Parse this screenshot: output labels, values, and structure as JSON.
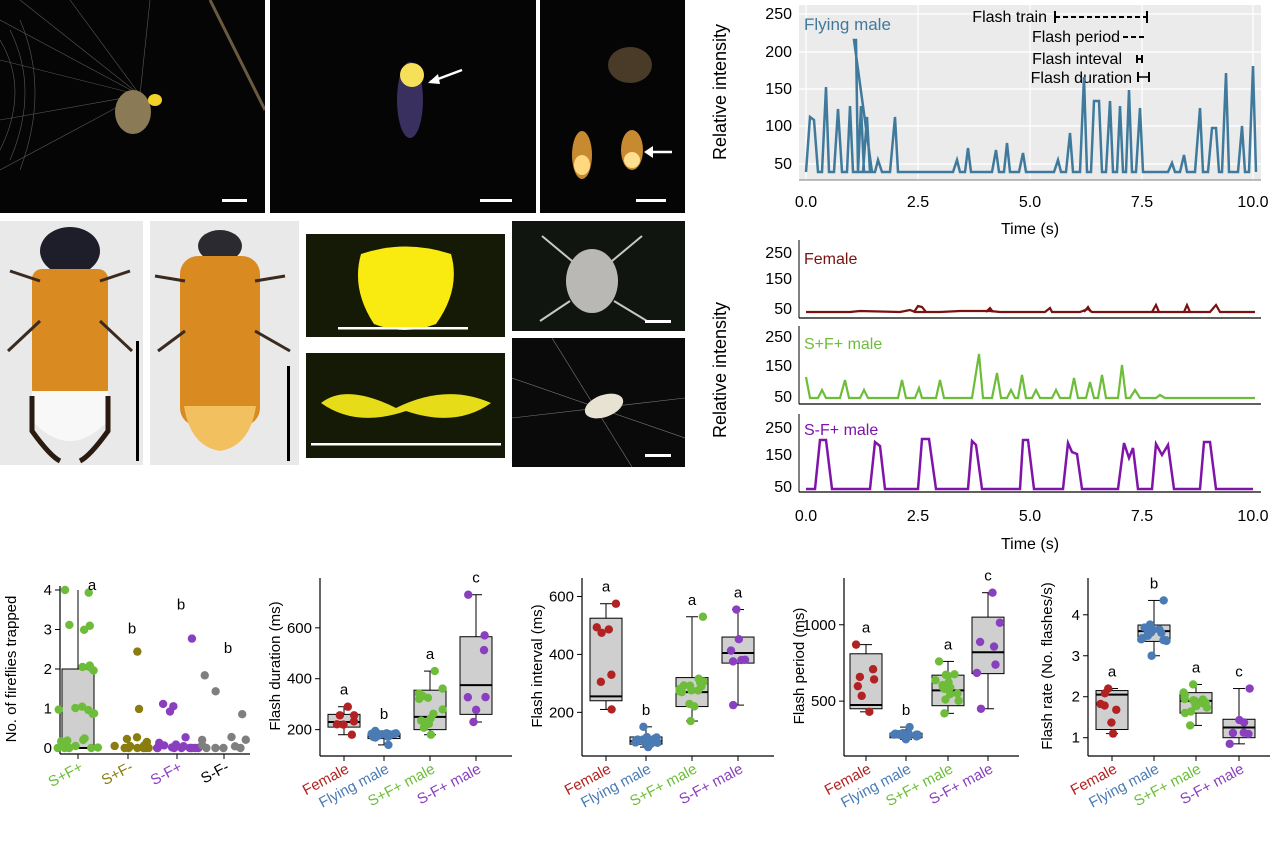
{
  "colors": {
    "female": "#b22222",
    "flying": "#4a7bb4",
    "sfmale": "#6dbd3a",
    "sfplus": "#8a3fbf",
    "sminus": "#8a7d10",
    "sfminus": "#7f7f7f",
    "trace_top": "#3f7a9c",
    "trace_female": "#7a1111",
    "trace_sf": "#6dbd3a",
    "trace_s_f": "#8013a8",
    "box_fill": "#cfcfcf"
  },
  "panelB": {
    "title": "Flying male",
    "ylabel": "Relative intensity",
    "xlabel": "Time (s)",
    "yticks": [
      "250",
      "200",
      "150",
      "100",
      "50"
    ],
    "xticks": [
      "0.0",
      "2.5",
      "5.0",
      "7.5",
      "10.0"
    ],
    "legend": [
      "Flash train",
      "Flash period",
      "Flash inteval",
      "Flash duration"
    ]
  },
  "panelC": {
    "ylabel": "Relative intensity",
    "xlabel": "Time (s)",
    "xticks": [
      "0.0",
      "2.5",
      "5.0",
      "7.5",
      "10.0"
    ],
    "yticks": [
      "250",
      "150",
      "50"
    ],
    "rows": [
      "Female",
      "S+F+ male",
      "S-F+ male"
    ]
  },
  "chart_data": [
    {
      "type": "scatter",
      "ylabel": "No. of fireflies trapped",
      "categories": [
        "S+F+",
        "S+F-",
        "S-F+",
        "S-F-"
      ],
      "letters": [
        "a",
        "b",
        "b",
        "b"
      ],
      "ylim": [
        0,
        4
      ],
      "yticks": [
        "4",
        "3",
        "2",
        "1",
        "0"
      ],
      "box": [
        {
          "q1": 0,
          "median": 0,
          "q3": 2,
          "min": 0,
          "max": 4
        }
      ],
      "series": [
        {
          "name": "S+F+",
          "values": [
            0,
            0,
            0,
            0,
            0,
            0,
            0,
            0,
            0,
            0,
            0,
            0,
            1,
            1,
            1,
            1,
            1,
            1,
            2,
            2,
            2,
            2,
            3,
            3,
            3,
            4,
            4
          ]
        },
        {
          "name": "S+F-",
          "values": [
            0,
            0,
            0,
            0,
            0,
            0,
            0,
            0,
            0,
            0,
            0,
            0,
            1,
            2.3
          ]
        },
        {
          "name": "S-F+",
          "values": [
            0,
            0,
            0,
            0,
            0,
            0,
            0,
            0,
            0,
            0,
            0,
            0,
            0,
            0,
            1,
            1,
            1,
            2.9
          ]
        },
        {
          "name": "S-F-",
          "values": [
            0,
            0,
            0,
            0,
            0,
            0,
            0,
            0,
            0,
            1,
            1.4,
            1.8
          ]
        }
      ]
    },
    {
      "type": "box",
      "ylabel": "Flash duration (ms)",
      "categories": [
        "Female",
        "Flying male",
        "S+F+ male",
        "S-F+ male"
      ],
      "letters": [
        "a",
        "b",
        "a",
        "c"
      ],
      "yticks": [
        "600",
        "400",
        "200"
      ],
      "ylim": [
        120,
        780
      ],
      "boxes": [
        {
          "min": 180,
          "q1": 210,
          "median": 230,
          "q3": 260,
          "max": 290
        },
        {
          "min": 140,
          "q1": 165,
          "median": 175,
          "q3": 185,
          "max": 195
        },
        {
          "min": 180,
          "q1": 200,
          "median": 250,
          "q3": 355,
          "max": 430
        },
        {
          "min": 230,
          "q1": 260,
          "median": 375,
          "q3": 565,
          "max": 730
        }
      ]
    },
    {
      "type": "box",
      "ylabel": "Flash interval (ms)",
      "categories": [
        "Female",
        "Flying male",
        "S+F+ male",
        "S-F+ male"
      ],
      "letters": [
        "a",
        "b",
        "a",
        "a"
      ],
      "yticks": [
        "600",
        "400",
        "200"
      ],
      "ylim": [
        70,
        650
      ],
      "boxes": [
        {
          "min": 210,
          "q1": 240,
          "median": 255,
          "q3": 525,
          "max": 575
        },
        {
          "min": 80,
          "q1": 90,
          "median": 100,
          "q3": 115,
          "max": 150
        },
        {
          "min": 170,
          "q1": 220,
          "median": 270,
          "q3": 320,
          "max": 530
        },
        {
          "min": 225,
          "q1": 370,
          "median": 405,
          "q3": 460,
          "max": 555
        }
      ]
    },
    {
      "type": "box",
      "ylabel": "Flash period (ms)",
      "categories": [
        "Female",
        "Flying male",
        "S+F+ male",
        "S-F+ male"
      ],
      "letters": [
        "a",
        "b",
        "a",
        "c"
      ],
      "yticks": [
        "1000",
        "500"
      ],
      "ylim": [
        180,
        1280
      ],
      "boxes": [
        {
          "min": 430,
          "q1": 450,
          "median": 475,
          "q3": 810,
          "max": 870
        },
        {
          "min": 250,
          "q1": 260,
          "median": 275,
          "q3": 290,
          "max": 330
        },
        {
          "min": 420,
          "q1": 470,
          "median": 570,
          "q3": 670,
          "max": 760
        },
        {
          "min": 450,
          "q1": 680,
          "median": 820,
          "q3": 1050,
          "max": 1210
        }
      ]
    },
    {
      "type": "box",
      "ylabel": "Flash rate (No. flashes/s)",
      "categories": [
        "Female",
        "Flying male",
        "S+F+ male",
        "S-F+ male"
      ],
      "letters": [
        "a",
        "b",
        "a",
        "c"
      ],
      "yticks": [
        "4",
        "3",
        "2",
        "1"
      ],
      "ylim": [
        0.7,
        4.8
      ],
      "boxes": [
        {
          "min": 1.1,
          "q1": 1.2,
          "median": 2.05,
          "q3": 2.15,
          "max": 2.2
        },
        {
          "min": 3.0,
          "q1": 3.35,
          "median": 3.6,
          "q3": 3.75,
          "max": 4.35
        },
        {
          "min": 1.3,
          "q1": 1.6,
          "median": 1.9,
          "q3": 2.1,
          "max": 2.3
        },
        {
          "min": 0.85,
          "q1": 1.0,
          "median": 1.25,
          "q3": 1.45,
          "max": 2.2
        }
      ]
    }
  ]
}
